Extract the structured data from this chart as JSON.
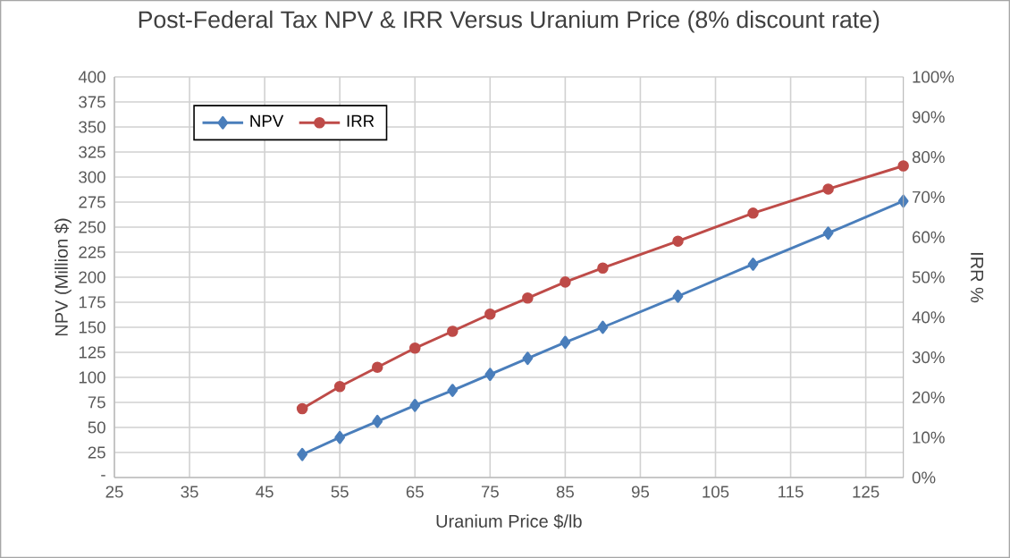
{
  "chart_data": {
    "type": "line",
    "title": "Post-Federal Tax NPV & IRR Versus Uranium Price (8% discount rate)",
    "xlabel": "Uranium Price $/lb",
    "ylabel": "NPV (Million $)",
    "y2label": "IRR %",
    "x": [
      50,
      55,
      60,
      65,
      70,
      75,
      80,
      85,
      90,
      100,
      110,
      120,
      130
    ],
    "series": [
      {
        "name": "NPV",
        "color": "#4a7ebb",
        "marker": "diamond",
        "values": [
          23,
          40,
          56,
          72,
          87,
          103,
          119,
          135,
          150,
          181,
          213,
          244,
          276
        ]
      },
      {
        "name": "IRR",
        "color": "#be4b48",
        "marker": "circle",
        "axis": "y2",
        "values": [
          17.2,
          22.7,
          27.5,
          32.3,
          36.5,
          40.8,
          44.8,
          48.8,
          52.3,
          59,
          66,
          72,
          77.8
        ]
      }
    ],
    "xlim": [
      25,
      130
    ],
    "xticks": [
      25,
      35,
      45,
      55,
      65,
      75,
      85,
      95,
      105,
      115,
      125
    ],
    "ylim": [
      0,
      400
    ],
    "yticks": [
      {
        "value": 0,
        "label": "-"
      },
      25,
      50,
      75,
      100,
      125,
      150,
      175,
      200,
      225,
      250,
      275,
      300,
      325,
      350,
      375,
      400
    ],
    "y2lim": [
      0,
      100
    ],
    "y2ticks": [
      {
        "value": 0,
        "label": "0%"
      },
      {
        "value": 10,
        "label": "10%"
      },
      {
        "value": 20,
        "label": "20%"
      },
      {
        "value": 30,
        "label": "30%"
      },
      {
        "value": 40,
        "label": "40%"
      },
      {
        "value": 50,
        "label": "50%"
      },
      {
        "value": 60,
        "label": "60%"
      },
      {
        "value": 70,
        "label": "70%"
      },
      {
        "value": 80,
        "label": "80%"
      },
      {
        "value": 90,
        "label": "90%"
      },
      {
        "value": 100,
        "label": "100%"
      }
    ],
    "grid": true,
    "legend": "top left"
  }
}
